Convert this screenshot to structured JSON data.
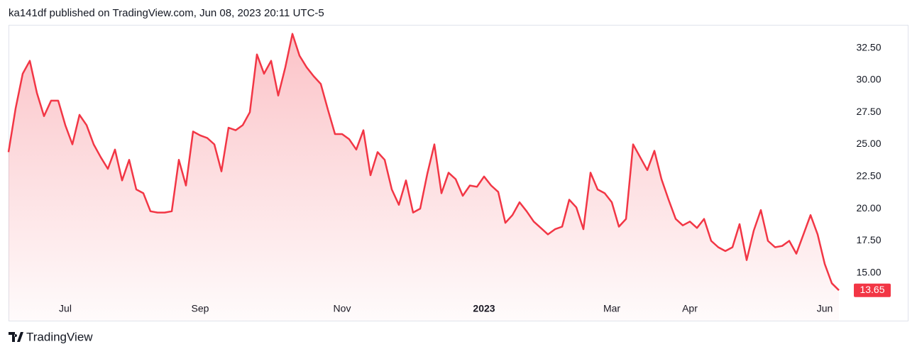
{
  "chart_data": {
    "type": "line",
    "title": "ka141df published on TradingView.com, Jun 08, 2023 20:11 UTC-5",
    "brand": "TradingView",
    "categories": [
      null,
      null,
      null,
      null,
      null,
      null,
      null,
      null,
      "Jul",
      null,
      null,
      null,
      null,
      null,
      null,
      null,
      null,
      null,
      null,
      null,
      null,
      null,
      null,
      null,
      null,
      null,
      null,
      "Sep",
      null,
      null,
      null,
      null,
      null,
      null,
      null,
      null,
      null,
      null,
      null,
      null,
      null,
      null,
      null,
      null,
      null,
      null,
      null,
      "Nov",
      null,
      null,
      null,
      null,
      null,
      null,
      null,
      null,
      null,
      null,
      null,
      null,
      null,
      null,
      null,
      null,
      null,
      null,
      null,
      "2023",
      null,
      null,
      null,
      null,
      null,
      null,
      null,
      null,
      null,
      null,
      null,
      null,
      null,
      null,
      null,
      null,
      null,
      "Mar",
      null,
      null,
      null,
      null,
      null,
      null,
      null,
      null,
      null,
      null,
      "Apr",
      null,
      null,
      null,
      null,
      null,
      null,
      null,
      null,
      null,
      null,
      null,
      null,
      null,
      null,
      null,
      null,
      null,
      null,
      "Jun",
      null,
      null
    ],
    "series": [
      {
        "color": "#f23645",
        "values": [
          24.4,
          27.8,
          30.5,
          31.5,
          29.0,
          27.2,
          28.4,
          28.4,
          26.5,
          25.0,
          27.3,
          26.5,
          25.0,
          24.0,
          23.1,
          24.6,
          22.2,
          23.8,
          21.5,
          21.2,
          19.8,
          19.7,
          19.7,
          19.8,
          23.8,
          21.8,
          26.0,
          25.7,
          25.5,
          25.0,
          22.9,
          26.3,
          26.1,
          26.5,
          27.5,
          32.0,
          30.5,
          31.5,
          28.8,
          31.0,
          33.6,
          31.9,
          31.0,
          30.3,
          29.7,
          27.7,
          25.8,
          25.8,
          25.4,
          24.6,
          26.1,
          22.6,
          24.4,
          23.8,
          21.5,
          20.3,
          22.2,
          19.7,
          20.0,
          22.7,
          25.0,
          21.2,
          22.8,
          22.3,
          21.0,
          21.8,
          21.7,
          22.5,
          21.8,
          21.3,
          18.9,
          19.5,
          20.5,
          19.8,
          19.0,
          18.5,
          18.0,
          18.4,
          18.6,
          20.7,
          20.1,
          18.4,
          22.8,
          21.5,
          21.2,
          20.5,
          18.6,
          19.2,
          25.0,
          24.0,
          23.0,
          24.5,
          22.3,
          20.7,
          19.2,
          18.7,
          19.0,
          18.5,
          19.2,
          17.5,
          17.0,
          16.7,
          17.0,
          18.8,
          16.0,
          18.3,
          19.9,
          17.5,
          17.0,
          17.1,
          17.5,
          16.5,
          18.0,
          19.5,
          18.0,
          15.7,
          14.2,
          13.65
        ]
      }
    ],
    "ylim": [
      13.0,
      34.3
    ],
    "yticks": [
      {
        "value": 15,
        "label": "15.00"
      },
      {
        "value": 17.5,
        "label": "17.50"
      },
      {
        "value": 20,
        "label": "20.00"
      },
      {
        "value": 22.5,
        "label": "22.50"
      },
      {
        "value": 25,
        "label": "25.00"
      },
      {
        "value": 27.5,
        "label": "27.50"
      },
      {
        "value": 30,
        "label": "30.00"
      },
      {
        "value": 32.5,
        "label": "32.50"
      }
    ],
    "bold_categories": [
      "2023"
    ],
    "grid": false
  }
}
